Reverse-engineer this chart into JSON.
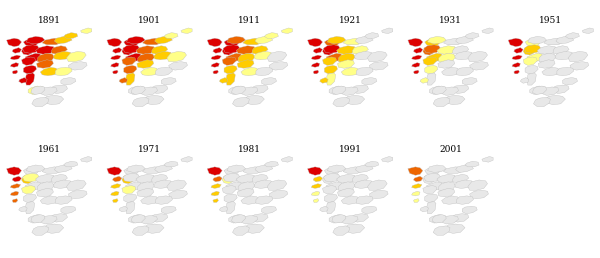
{
  "years_row1": [
    "1891",
    "1901",
    "1911",
    "1921",
    "1931",
    "1951"
  ],
  "years_row2": [
    "1961",
    "1971",
    "1981",
    "1991",
    "2001"
  ],
  "colors": {
    "high": "#dd0000",
    "medium_high": "#ee6600",
    "medium": "#ffcc00",
    "low": "#ffff88",
    "none_fill": "#e8e8e8",
    "border": "#999999",
    "background": "#ffffff",
    "mesh_edge": "#bbbbbb"
  },
  "figsize": [
    6.0,
    2.58
  ],
  "dpi": 100
}
